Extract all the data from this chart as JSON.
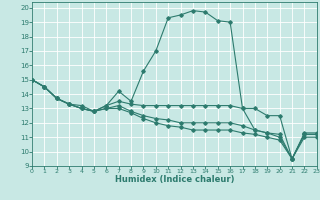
{
  "xlabel": "Humidex (Indice chaleur)",
  "xlim": [
    0,
    23
  ],
  "ylim": [
    9,
    20.4
  ],
  "yticks": [
    9,
    10,
    11,
    12,
    13,
    14,
    15,
    16,
    17,
    18,
    19,
    20
  ],
  "xticks": [
    0,
    1,
    2,
    3,
    4,
    5,
    6,
    7,
    8,
    9,
    10,
    11,
    12,
    13,
    14,
    15,
    16,
    17,
    18,
    19,
    20,
    21,
    22,
    23
  ],
  "bg_color": "#c8e8e4",
  "line_color": "#2d7b6e",
  "grid_color": "#ffffff",
  "lines": [
    {
      "x": [
        0,
        1,
        2,
        3,
        4,
        5,
        6,
        7,
        8,
        9,
        10,
        11,
        12,
        13,
        14,
        15,
        16,
        17,
        18,
        19,
        20,
        21,
        22,
        23
      ],
      "y": [
        15.0,
        14.5,
        13.7,
        13.3,
        13.2,
        12.8,
        13.2,
        14.2,
        13.5,
        15.6,
        17.0,
        19.3,
        19.5,
        19.8,
        19.7,
        19.1,
        19.0,
        13.0,
        13.0,
        12.5,
        12.5,
        9.5,
        11.3,
        11.3
      ]
    },
    {
      "x": [
        0,
        1,
        2,
        3,
        4,
        5,
        6,
        7,
        8,
        9,
        10,
        11,
        12,
        13,
        14,
        15,
        16,
        17,
        18,
        19,
        20,
        21,
        22,
        23
      ],
      "y": [
        15.0,
        14.5,
        13.7,
        13.3,
        13.0,
        12.8,
        13.2,
        13.5,
        13.3,
        13.2,
        13.2,
        13.2,
        13.2,
        13.2,
        13.2,
        13.2,
        13.2,
        13.0,
        11.5,
        11.3,
        11.2,
        9.5,
        11.2,
        11.2
      ]
    },
    {
      "x": [
        0,
        1,
        2,
        3,
        4,
        5,
        6,
        7,
        8,
        9,
        10,
        11,
        12,
        13,
        14,
        15,
        16,
        17,
        18,
        19,
        20,
        21,
        22,
        23
      ],
      "y": [
        15.0,
        14.5,
        13.7,
        13.3,
        13.0,
        12.8,
        13.0,
        13.2,
        12.8,
        12.5,
        12.3,
        12.2,
        12.0,
        12.0,
        12.0,
        12.0,
        12.0,
        11.8,
        11.5,
        11.3,
        11.0,
        9.5,
        11.2,
        11.2
      ]
    },
    {
      "x": [
        0,
        1,
        2,
        3,
        4,
        5,
        6,
        7,
        8,
        9,
        10,
        11,
        12,
        13,
        14,
        15,
        16,
        17,
        18,
        19,
        20,
        21,
        22,
        23
      ],
      "y": [
        15.0,
        14.5,
        13.7,
        13.3,
        13.0,
        12.8,
        13.0,
        13.0,
        12.7,
        12.3,
        12.0,
        11.8,
        11.7,
        11.5,
        11.5,
        11.5,
        11.5,
        11.3,
        11.2,
        11.0,
        10.8,
        9.5,
        11.0,
        11.0
      ]
    }
  ]
}
